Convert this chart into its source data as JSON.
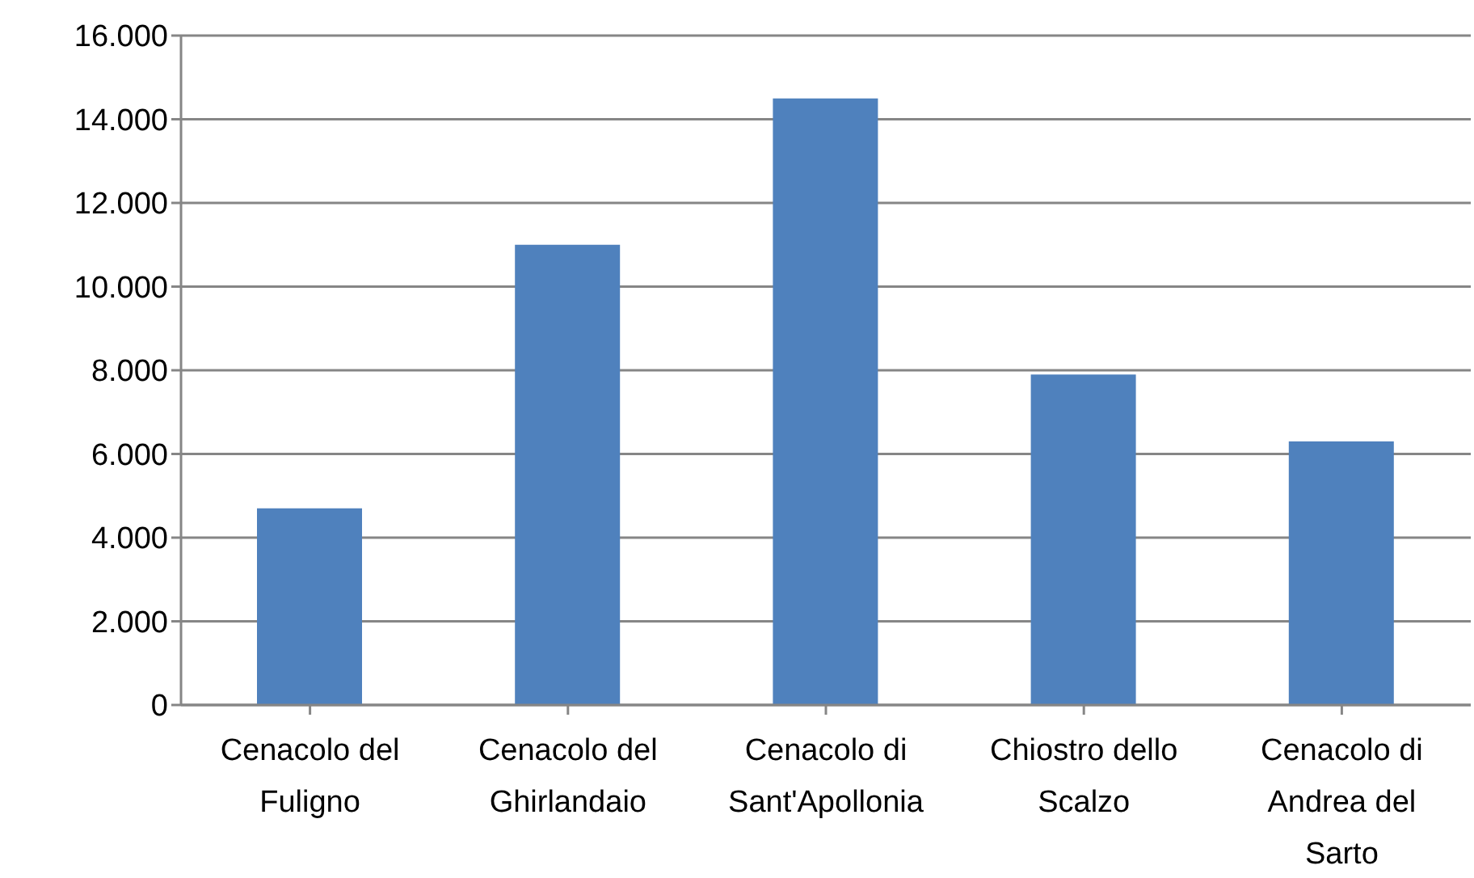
{
  "chart_data": {
    "type": "bar",
    "categories": [
      "Cenacolo del Fuligno",
      "Cenacolo del Ghirlandaio",
      "Cenacolo di Sant'Apollonia",
      "Chiostro dello Scalzo",
      "Cenacolo di Andrea del Sarto"
    ],
    "values": [
      4700,
      11000,
      14500,
      7900,
      6300
    ],
    "color": "#4f81bd",
    "ylim": [
      0,
      16000
    ],
    "yticks": [
      0,
      {
        "value": 2000,
        "label": "2.000"
      },
      {
        "value": 4000,
        "label": "4.000"
      },
      {
        "value": 6000,
        "label": "6.000"
      },
      {
        "value": 8000,
        "label": "8.000"
      },
      {
        "value": 10000,
        "label": "10.000"
      },
      {
        "value": 12000,
        "label": "12.000"
      },
      {
        "value": 14000,
        "label": "14.000"
      },
      {
        "value": 16000,
        "label": "16.000"
      }
    ],
    "grid": "y"
  }
}
